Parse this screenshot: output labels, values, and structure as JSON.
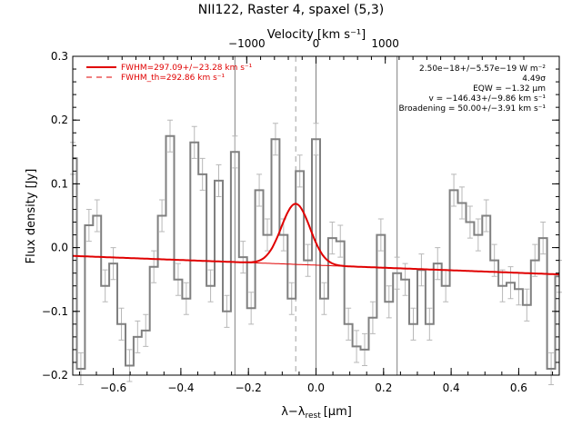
{
  "chart_data": {
    "type": "line",
    "title": "NII122, Raster 4, spaxel (5,3)",
    "xlabel": "λ−λ",
    "xlabel_sub": "rest",
    "xlabel_unit": "[μm]",
    "ylabel": "Flux density [Jy]",
    "top_axis_label": "Velocity [km s⁻¹]",
    "xlim": [
      -0.72,
      0.72
    ],
    "ylim": [
      -0.2,
      0.3
    ],
    "x_ticks": [
      -0.6,
      -0.4,
      -0.2,
      0.0,
      0.2,
      0.4,
      0.6
    ],
    "x_tick_labels": [
      "−0.6",
      "−0.4",
      "−0.2",
      "0.0",
      "0.2",
      "0.4",
      "0.6"
    ],
    "y_ticks": [
      -0.2,
      -0.1,
      0.0,
      0.1,
      0.2,
      0.3
    ],
    "y_tick_labels": [
      "−0.2",
      "−0.1",
      "0.0",
      "0.1",
      "0.2",
      "0.3"
    ],
    "top_ticks": [
      -1000,
      0,
      1000
    ],
    "top_tick_labels": [
      "−1000",
      "0",
      "1000"
    ],
    "vertical_lines": [
      -0.24,
      0.0,
      0.24
    ],
    "dashed_line": -0.06,
    "legend": [
      {
        "label": "FWHM=297.09+/−23.28 km s⁻¹",
        "style": "solid",
        "color": "#e00000"
      },
      {
        "label": "FWHM_th=292.86 km s⁻¹",
        "style": "dashed",
        "color": "#e00000"
      }
    ],
    "annotations": [
      "2.50e−18+/−5.57e−19 W m⁻²",
      "4.49σ",
      "EQW = −1.32 μm",
      "v = −146.43+/−9.86 km s⁻¹",
      "Broadening = 50.00+/−3.91 km s⁻¹"
    ],
    "series": [
      {
        "kind": "histogram",
        "bin_width": 0.024,
        "x": [
          -0.72,
          -0.696,
          -0.672,
          -0.648,
          -0.624,
          -0.6,
          -0.576,
          -0.552,
          -0.528,
          -0.504,
          -0.48,
          -0.456,
          -0.432,
          -0.408,
          -0.384,
          -0.36,
          -0.336,
          -0.312,
          -0.288,
          -0.264,
          -0.24,
          -0.216,
          -0.192,
          -0.168,
          -0.144,
          -0.12,
          -0.096,
          -0.072,
          -0.048,
          -0.024,
          0.0,
          0.024,
          0.048,
          0.072,
          0.096,
          0.12,
          0.144,
          0.168,
          0.192,
          0.216,
          0.24,
          0.264,
          0.288,
          0.312,
          0.336,
          0.36,
          0.384,
          0.408,
          0.432,
          0.456,
          0.48,
          0.504,
          0.528,
          0.552,
          0.576,
          0.6,
          0.624,
          0.648,
          0.672,
          0.696,
          0.72
        ],
        "values": [
          0.14,
          -0.19,
          0.035,
          0.05,
          -0.06,
          -0.025,
          -0.12,
          -0.185,
          -0.14,
          -0.13,
          -0.03,
          0.05,
          0.175,
          -0.05,
          -0.08,
          0.165,
          0.115,
          -0.06,
          0.105,
          -0.1,
          0.15,
          -0.015,
          -0.095,
          0.09,
          0.02,
          0.17,
          0.02,
          -0.08,
          0.12,
          -0.02,
          0.17,
          -0.08,
          0.015,
          0.01,
          -0.12,
          -0.155,
          -0.16,
          -0.11,
          0.02,
          -0.085,
          -0.04,
          -0.05,
          -0.12,
          -0.035,
          -0.12,
          -0.025,
          -0.06,
          0.09,
          0.07,
          0.04,
          0.02,
          0.05,
          -0.02,
          -0.06,
          -0.055,
          -0.065,
          -0.09,
          -0.02,
          0.015,
          -0.19,
          -0.045
        ],
        "errors": [
          0.025,
          0.025,
          0.025,
          0.025,
          0.025,
          0.025,
          0.025,
          0.025,
          0.025,
          0.025,
          0.025,
          0.025,
          0.025,
          0.025,
          0.025,
          0.025,
          0.025,
          0.025,
          0.025,
          0.025,
          0.025,
          0.025,
          0.025,
          0.025,
          0.025,
          0.025,
          0.025,
          0.025,
          0.025,
          0.025,
          0.025,
          0.025,
          0.025,
          0.025,
          0.025,
          0.025,
          0.025,
          0.025,
          0.025,
          0.025,
          0.025,
          0.025,
          0.025,
          0.025,
          0.025,
          0.025,
          0.025,
          0.025,
          0.025,
          0.025,
          0.025,
          0.025,
          0.025,
          0.025,
          0.025,
          0.025,
          0.025,
          0.025,
          0.025,
          0.025,
          0.025
        ],
        "color": "#808080"
      },
      {
        "kind": "model",
        "baseline_x": [
          -0.72,
          0.72
        ],
        "baseline_y": [
          -0.013,
          -0.042
        ],
        "gauss_center": -0.06,
        "gauss_amplitude": 0.095,
        "gauss_fwhm": 0.1,
        "color": "#e00000"
      }
    ]
  }
}
